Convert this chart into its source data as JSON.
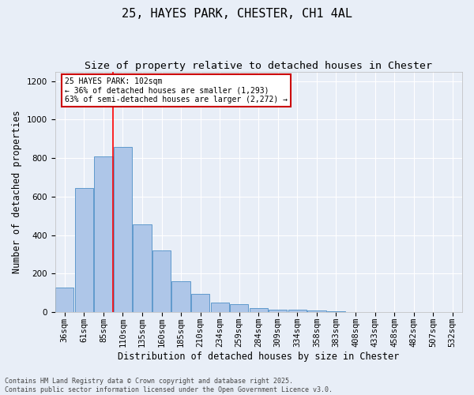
{
  "title": "25, HAYES PARK, CHESTER, CH1 4AL",
  "subtitle": "Size of property relative to detached houses in Chester",
  "xlabel": "Distribution of detached houses by size in Chester",
  "ylabel": "Number of detached properties",
  "categories": [
    "36sqm",
    "61sqm",
    "85sqm",
    "110sqm",
    "135sqm",
    "160sqm",
    "185sqm",
    "210sqm",
    "234sqm",
    "259sqm",
    "284sqm",
    "309sqm",
    "334sqm",
    "358sqm",
    "383sqm",
    "408sqm",
    "433sqm",
    "458sqm",
    "482sqm",
    "507sqm",
    "532sqm"
  ],
  "values": [
    130,
    645,
    810,
    860,
    455,
    320,
    160,
    95,
    50,
    40,
    20,
    15,
    13,
    8,
    3,
    2,
    1,
    1,
    0,
    0,
    0
  ],
  "bar_color": "#aec6e8",
  "bar_edge_color": "#4e8fc7",
  "background_color": "#e8eef7",
  "grid_color": "#ffffff",
  "red_line_x": 2.5,
  "annotation_text": "25 HAYES PARK: 102sqm\n← 36% of detached houses are smaller (1,293)\n63% of semi-detached houses are larger (2,272) →",
  "annotation_box_color": "#ffffff",
  "annotation_box_edge": "#cc0000",
  "ylim": [
    0,
    1250
  ],
  "yticks": [
    0,
    200,
    400,
    600,
    800,
    1000,
    1200
  ],
  "footnote": "Contains HM Land Registry data © Crown copyright and database right 2025.\nContains public sector information licensed under the Open Government Licence v3.0.",
  "title_fontsize": 11,
  "subtitle_fontsize": 9.5,
  "xlabel_fontsize": 8.5,
  "ylabel_fontsize": 8.5,
  "tick_fontsize": 7.5,
  "annot_fontsize": 7,
  "footnote_fontsize": 6
}
